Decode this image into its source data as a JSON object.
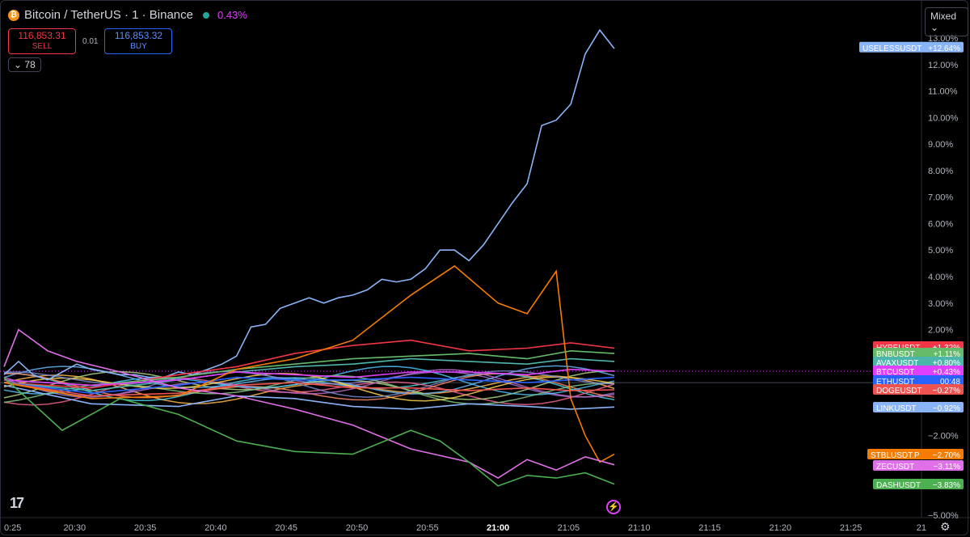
{
  "header": {
    "logo_icon": "bitcoin-icon",
    "title": "Bitcoin / TetherUS · 1 · Binance",
    "change": "0.43%",
    "market_status_color": "#26a69a"
  },
  "trade": {
    "sell_price": "116,853.31",
    "sell_label": "SELL",
    "spread": "0.01",
    "buy_price": "116,853.32",
    "buy_label": "BUY"
  },
  "indicators_toggle": "78",
  "scale_mode": "Mixed",
  "chart_data": {
    "type": "line",
    "x_ticks": [
      "0:25",
      "20:30",
      "20:35",
      "20:40",
      "20:45",
      "20:50",
      "20:55",
      "21:00",
      "21:05",
      "21:10",
      "21:15",
      "21:20",
      "21:25",
      "21"
    ],
    "y_ticks": [
      "13.00%",
      "12.00%",
      "11.00%",
      "10.00%",
      "9.00%",
      "8.00%",
      "7.00%",
      "6.00%",
      "5.00%",
      "4.00%",
      "3.00%",
      "2.00%",
      "−2.00%",
      "−5.00%"
    ],
    "ylim": [
      -5.0,
      13.0
    ],
    "zero_line": true,
    "series": [
      {
        "name": "USELESSUSDT",
        "value": "+12.64%",
        "color": "#8ab4f8",
        "points": [
          [
            20.4,
            0.3
          ],
          [
            20.5,
            0.8
          ],
          [
            20.6,
            0.3
          ],
          [
            20.7,
            0.1
          ],
          [
            20.8,
            0.4
          ],
          [
            20.9,
            0.7
          ],
          [
            21.0,
            0.5
          ],
          [
            21.1,
            0.4
          ],
          [
            21.2,
            0.3
          ],
          [
            21.3,
            0.3
          ],
          [
            21.4,
            0.2
          ],
          [
            21.5,
            0.2
          ],
          [
            21.6,
            0.4
          ],
          [
            21.7,
            0.3
          ],
          [
            21.8,
            0.5
          ],
          [
            21.9,
            0.7
          ],
          [
            22.0,
            1.0
          ],
          [
            22.1,
            2.1
          ],
          [
            22.2,
            2.2
          ],
          [
            22.3,
            2.8
          ],
          [
            22.4,
            3.0
          ],
          [
            22.5,
            3.2
          ],
          [
            22.6,
            3.0
          ],
          [
            22.7,
            3.2
          ],
          [
            22.8,
            3.3
          ],
          [
            22.9,
            3.5
          ],
          [
            23.0,
            3.9
          ],
          [
            23.1,
            3.8
          ],
          [
            23.2,
            3.9
          ],
          [
            23.3,
            4.3
          ],
          [
            23.4,
            5.0
          ],
          [
            23.5,
            5.0
          ],
          [
            23.6,
            4.6
          ],
          [
            23.7,
            5.2
          ],
          [
            23.8,
            6.0
          ],
          [
            23.9,
            6.8
          ],
          [
            24.0,
            7.5
          ],
          [
            24.1,
            9.7
          ],
          [
            24.2,
            9.9
          ],
          [
            24.3,
            10.5
          ],
          [
            24.4,
            12.4
          ],
          [
            24.5,
            13.3
          ],
          [
            24.6,
            12.6
          ]
        ]
      },
      {
        "name": "HYPEUSDT",
        "value": "+1.32%",
        "color": "#f23645",
        "points": [
          [
            20.4,
            0.0
          ],
          [
            21.0,
            -0.2
          ],
          [
            21.6,
            0.3
          ],
          [
            22.0,
            0.6
          ],
          [
            22.4,
            1.1
          ],
          [
            22.8,
            1.4
          ],
          [
            23.2,
            1.6
          ],
          [
            23.6,
            1.2
          ],
          [
            24.0,
            1.3
          ],
          [
            24.3,
            1.5
          ],
          [
            24.6,
            1.3
          ]
        ]
      },
      {
        "name": "BNBUSDT",
        "value": "+1.11%",
        "color": "#66bb6a",
        "points": [
          [
            20.4,
            0.1
          ],
          [
            21.0,
            -0.1
          ],
          [
            21.6,
            0.2
          ],
          [
            22.0,
            0.5
          ],
          [
            22.4,
            0.7
          ],
          [
            22.8,
            0.9
          ],
          [
            23.2,
            1.0
          ],
          [
            23.6,
            1.1
          ],
          [
            24.0,
            0.9
          ],
          [
            24.3,
            1.2
          ],
          [
            24.6,
            1.1
          ]
        ]
      },
      {
        "name": "AVAXUSDT",
        "value": "+0.80%",
        "color": "#4db6ac",
        "points": [
          [
            20.4,
            0.0
          ],
          [
            21.0,
            -0.3
          ],
          [
            21.6,
            0.1
          ],
          [
            22.0,
            0.4
          ],
          [
            22.4,
            0.6
          ],
          [
            22.8,
            0.7
          ],
          [
            23.2,
            0.9
          ],
          [
            23.6,
            0.8
          ],
          [
            24.0,
            0.7
          ],
          [
            24.3,
            0.9
          ],
          [
            24.6,
            0.8
          ]
        ]
      },
      {
        "name": "BTCUSDT",
        "value": "+0.43%",
        "color": "#e040fb",
        "points": [
          [
            20.4,
            0.1
          ],
          [
            21.0,
            -0.1
          ],
          [
            21.6,
            0.1
          ],
          [
            22.0,
            0.4
          ],
          [
            22.4,
            0.3
          ],
          [
            22.8,
            0.2
          ],
          [
            23.2,
            0.4
          ],
          [
            23.6,
            0.4
          ],
          [
            24.0,
            0.3
          ],
          [
            24.3,
            0.5
          ],
          [
            24.6,
            0.43
          ]
        ]
      },
      {
        "name": "ETHUSDT",
        "value": "00:48",
        "color": "#2962ff",
        "points": [
          [
            20.4,
            0.0
          ],
          [
            21.0,
            -0.4
          ],
          [
            21.6,
            -0.1
          ],
          [
            22.0,
            0.2
          ],
          [
            22.4,
            0.1
          ],
          [
            22.8,
            0.1
          ],
          [
            23.2,
            0.2
          ],
          [
            23.6,
            0.1
          ],
          [
            24.0,
            0.0
          ],
          [
            24.3,
            0.1
          ],
          [
            24.6,
            0.2
          ]
        ]
      },
      {
        "name": "DOGEUSDT",
        "value": "−0.27%",
        "color": "#ef5350",
        "points": [
          [
            20.4,
            0.0
          ],
          [
            21.0,
            -0.5
          ],
          [
            21.6,
            -0.4
          ],
          [
            22.0,
            -0.1
          ],
          [
            22.4,
            0.0
          ],
          [
            22.8,
            -0.2
          ],
          [
            23.2,
            -0.2
          ],
          [
            23.6,
            -0.3
          ],
          [
            24.0,
            -0.2
          ],
          [
            24.3,
            -0.3
          ],
          [
            24.6,
            -0.27
          ]
        ]
      },
      {
        "name": "LINKUSDT",
        "value": "−0.92%",
        "color": "#8ab4f8",
        "points": [
          [
            20.4,
            -0.1
          ],
          [
            21.0,
            -0.8
          ],
          [
            21.6,
            -0.9
          ],
          [
            22.0,
            -0.5
          ],
          [
            22.4,
            -0.6
          ],
          [
            22.8,
            -0.9
          ],
          [
            23.2,
            -1.0
          ],
          [
            23.6,
            -0.8
          ],
          [
            24.0,
            -0.9
          ],
          [
            24.3,
            -1.0
          ],
          [
            24.6,
            -0.92
          ]
        ]
      },
      {
        "name": "STBLUSDT.P",
        "value": "−2.70%",
        "color": "#f57c00",
        "points": [
          [
            20.4,
            0.0
          ],
          [
            21.0,
            -0.6
          ],
          [
            21.6,
            -0.5
          ],
          [
            22.0,
            0.5
          ],
          [
            22.4,
            0.9
          ],
          [
            22.8,
            1.6
          ],
          [
            23.2,
            3.3
          ],
          [
            23.5,
            4.4
          ],
          [
            23.8,
            3.0
          ],
          [
            24.0,
            2.6
          ],
          [
            24.2,
            4.2
          ],
          [
            24.3,
            -0.6
          ],
          [
            24.4,
            -2.0
          ],
          [
            24.5,
            -3.0
          ],
          [
            24.6,
            -2.7
          ]
        ]
      },
      {
        "name": "ZECUSDT",
        "value": "−3.11%",
        "color": "#e070e8",
        "points": [
          [
            20.4,
            0.6
          ],
          [
            20.5,
            2.0
          ],
          [
            20.7,
            1.2
          ],
          [
            20.9,
            0.8
          ],
          [
            21.2,
            0.4
          ],
          [
            21.6,
            -0.2
          ],
          [
            22.0,
            -0.5
          ],
          [
            22.4,
            -1.0
          ],
          [
            22.8,
            -1.6
          ],
          [
            23.2,
            -2.5
          ],
          [
            23.6,
            -3.0
          ],
          [
            23.8,
            -3.6
          ],
          [
            24.0,
            -2.9
          ],
          [
            24.2,
            -3.3
          ],
          [
            24.4,
            -2.8
          ],
          [
            24.6,
            -3.1
          ]
        ]
      },
      {
        "name": "DASHUSDT",
        "value": "−3.83%",
        "color": "#4caf50",
        "points": [
          [
            20.4,
            0.2
          ],
          [
            20.8,
            -1.8
          ],
          [
            21.2,
            -0.6
          ],
          [
            21.6,
            -1.2
          ],
          [
            22.0,
            -2.2
          ],
          [
            22.4,
            -2.6
          ],
          [
            22.8,
            -2.7
          ],
          [
            23.2,
            -1.8
          ],
          [
            23.4,
            -2.2
          ],
          [
            23.6,
            -3.0
          ],
          [
            23.8,
            -3.9
          ],
          [
            24.0,
            -3.5
          ],
          [
            24.2,
            -3.6
          ],
          [
            24.4,
            -3.4
          ],
          [
            24.6,
            -3.83
          ]
        ]
      }
    ]
  },
  "footer": {
    "logo_icon": "tradingview-logo-icon",
    "alert_icon": "lightning-icon",
    "settings_icon": "gear-icon"
  }
}
